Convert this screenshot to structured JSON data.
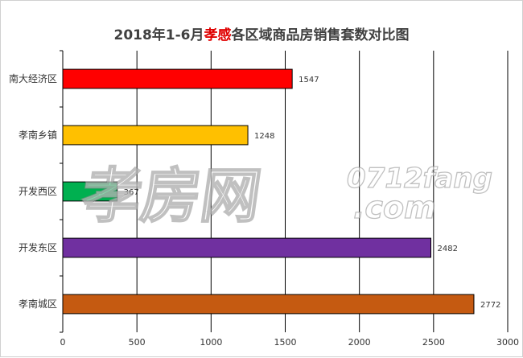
{
  "chart_data": {
    "type": "bar",
    "orientation": "horizontal",
    "title_prefix": "2018年1-6月",
    "title_highlight": "孝感",
    "title_suffix": "各区域商品房销售套数对比图",
    "categories": [
      "南大经济区",
      "孝南乡镇",
      "开发西区",
      "开发东区",
      "孝南城区"
    ],
    "values": [
      1547,
      1248,
      367,
      2482,
      2772
    ],
    "colors": [
      "#ff0000",
      "#ffc000",
      "#00b050",
      "#7030a0",
      "#c55a11"
    ],
    "xlim": [
      0,
      3000
    ],
    "xticks": [
      0,
      500,
      1000,
      1500,
      2000,
      2500,
      3000
    ],
    "grid": true,
    "legend": "none",
    "title_highlight_color": "#e00000"
  },
  "watermark": {
    "main": "孝房网",
    "sub_top": "0712fang",
    "sub_bottom": ".com"
  }
}
